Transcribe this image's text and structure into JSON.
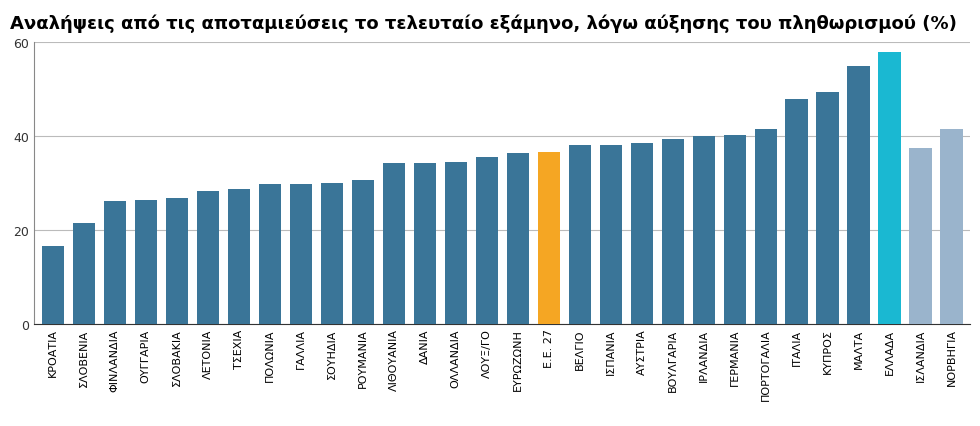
{
  "chart_data": {
    "type": "bar",
    "title": "Αναλήψεις από τις αποταμιεύσεις το τελευταίο εξάμηνο, λόγω αύξησης του πληθωρισμού (%)",
    "categories": [
      "ΚΡΟΑΤΙΑ",
      "ΣΛΟΒΕΝΙΑ",
      "ΦΙΝΛΑΝΔΙΑ",
      "ΟΥΓΓΑΡΙΑ",
      "ΣΛΟΒΑΚΙΑ",
      "ΛΕΤΟΝΙΑ",
      "ΤΣΕΧΙΑ",
      "ΠΟΛΩΝΙΑ",
      "ΓΑΛΛΙΑ",
      "ΣΟΥΗΔΙΑ",
      "ΡΟΥΜΑΝΙΑ",
      "ΛΙΘΟΥΑΝΙΑ",
      "ΔΑΝΙΑ",
      "ΟΛΛΑΝΔΙΑ",
      "ΛΟΥΞ/ΓΟ",
      "ΕΥΡΩΖΩΝΗ",
      "Ε.Ε. 27",
      "ΒΕΛΓΙΟ",
      "ΙΣΠΑΝΙΑ",
      "ΑΥΣΤΡΙΑ",
      "ΒΟΥΛΓΑΡΙΑ",
      "ΙΡΛΑΝΔΙΑ",
      "ΓΕΡΜΑΝΙΑ",
      "ΠΟΡΤΟΓΑΛΙΑ",
      "ΙΤΑΛΙΑ",
      "ΚΥΠΡΟΣ",
      "ΜΑΛΤΑ",
      "ΕΛΛΑΔΑ",
      "ΙΣΛΑΝΔΙΑ",
      "ΝΟΡΒΗΓΙΑ"
    ],
    "values": [
      16.5,
      21.5,
      26,
      26.2,
      26.8,
      28.3,
      28.7,
      29.7,
      29.8,
      30,
      30.5,
      34.2,
      34.2,
      34.4,
      35.5,
      36.2,
      36.5,
      38,
      38,
      38.5,
      39.3,
      40,
      40.2,
      41.5,
      47.8,
      49.3,
      54.8,
      57.8,
      37.4,
      41.4
    ],
    "colors": [
      "#3a7598",
      "#3a7598",
      "#3a7598",
      "#3a7598",
      "#3a7598",
      "#3a7598",
      "#3a7598",
      "#3a7598",
      "#3a7598",
      "#3a7598",
      "#3a7598",
      "#3a7598",
      "#3a7598",
      "#3a7598",
      "#3a7598",
      "#3a7598",
      "#f5a623",
      "#3a7598",
      "#3a7598",
      "#3a7598",
      "#3a7598",
      "#3a7598",
      "#3a7598",
      "#3a7598",
      "#3a7598",
      "#3a7598",
      "#3a7598",
      "#1ab8d2",
      "#9ab4cc",
      "#9ab4cc"
    ],
    "ylim": [
      0,
      60
    ],
    "yticks": [
      0,
      20,
      40,
      60
    ],
    "grid": true
  }
}
